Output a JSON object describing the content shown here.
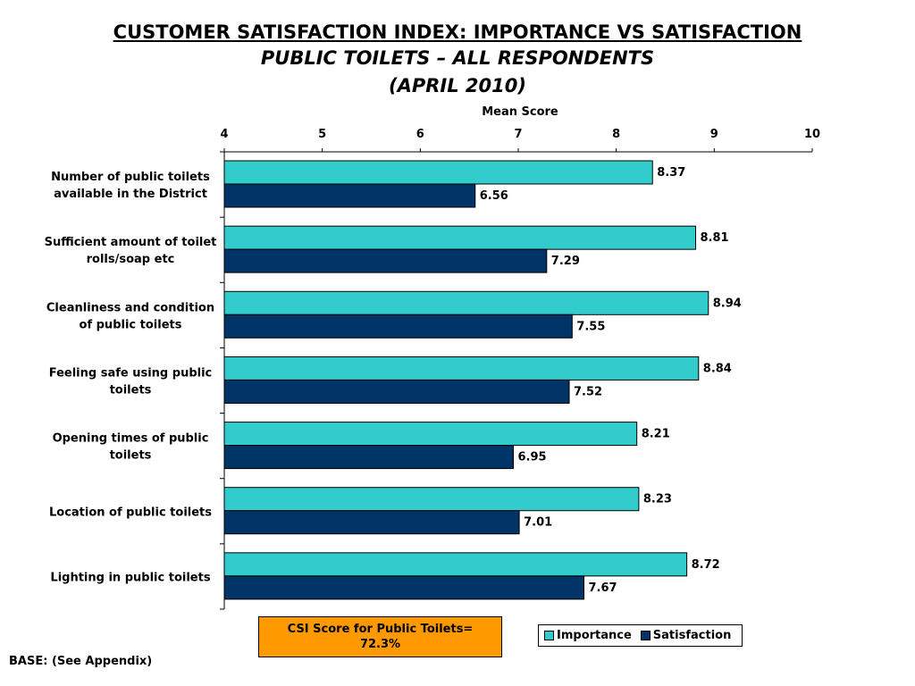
{
  "header": {
    "title": "CUSTOMER SATISFACTION INDEX: IMPORTANCE VS SATISFACTION",
    "subtitle": "PUBLIC TOILETS – ALL RESPONDENTS",
    "date": "(APRIL 2010)"
  },
  "chart_data": {
    "type": "bar",
    "orientation": "horizontal",
    "xlabel": "Mean Score",
    "xlim": [
      4,
      10
    ],
    "ticks": [
      "4",
      "5",
      "6",
      "7",
      "8",
      "9",
      "10"
    ],
    "grid": false,
    "legend_placement": "bottom-right",
    "categories": [
      [
        "Number of public toilets",
        "available in the District"
      ],
      [
        "Sufficient amount of toilet",
        "rolls/soap etc"
      ],
      [
        "Cleanliness and condition",
        "of public toilets"
      ],
      [
        "Feeling safe using public",
        "toilets"
      ],
      [
        "Opening times of public",
        "toilets"
      ],
      [
        "Location of public toilets"
      ],
      [
        "Lighting in public toilets"
      ]
    ],
    "series": [
      {
        "name": "Importance",
        "color": "#33cccc",
        "values": [
          8.37,
          8.81,
          8.94,
          8.84,
          8.21,
          8.23,
          8.72
        ],
        "labels": [
          "8.37",
          "8.81",
          "8.94",
          "8.84",
          "8.21",
          "8.23",
          "8.72"
        ]
      },
      {
        "name": "Satisfaction",
        "color": "#003366",
        "values": [
          6.56,
          7.29,
          7.55,
          7.52,
          6.95,
          7.01,
          7.67
        ],
        "labels": [
          "6.56",
          "7.29",
          "7.55",
          "7.52",
          "6.95",
          "7.01",
          "7.67"
        ]
      }
    ]
  },
  "csi": {
    "line1": "CSI Score for Public Toilets=",
    "line2": "72.3%"
  },
  "legend": {
    "importance": "Importance",
    "satisfaction": "Satisfaction",
    "importance_color": "#33cccc",
    "satisfaction_color": "#003366"
  },
  "footer": {
    "base": "BASE: (See Appendix)"
  }
}
